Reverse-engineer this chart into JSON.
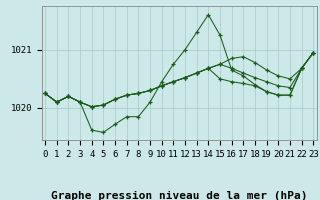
{
  "title": "Graphe pression niveau de la mer (hPa)",
  "x_labels": [
    "0",
    "1",
    "2",
    "3",
    "4",
    "5",
    "6",
    "7",
    "8",
    "9",
    "10",
    "11",
    "12",
    "13",
    "14",
    "15",
    "16",
    "17",
    "18",
    "19",
    "20",
    "21",
    "22",
    "23"
  ],
  "x_values": [
    0,
    1,
    2,
    3,
    4,
    5,
    6,
    7,
    8,
    9,
    10,
    11,
    12,
    13,
    14,
    15,
    16,
    17,
    18,
    19,
    20,
    21,
    22,
    23
  ],
  "series": [
    [
      1020.25,
      1020.1,
      1020.2,
      1020.1,
      1019.62,
      1019.58,
      1019.72,
      1019.85,
      1019.85,
      1020.1,
      1020.45,
      1020.75,
      1021.0,
      1021.3,
      1021.6,
      1021.25,
      1020.65,
      1020.55,
      1020.4,
      1020.28,
      1020.22,
      1020.22,
      1020.68,
      1020.95
    ],
    [
      1020.25,
      1020.1,
      1020.2,
      1020.1,
      1020.02,
      1020.05,
      1020.15,
      1020.22,
      1020.25,
      1020.3,
      1020.38,
      1020.45,
      1020.52,
      1020.6,
      1020.68,
      1020.5,
      1020.45,
      1020.42,
      1020.38,
      1020.28,
      1020.22,
      1020.22,
      1020.68,
      1020.95
    ],
    [
      1020.25,
      1020.1,
      1020.2,
      1020.1,
      1020.02,
      1020.05,
      1020.15,
      1020.22,
      1020.25,
      1020.3,
      1020.38,
      1020.45,
      1020.52,
      1020.6,
      1020.68,
      1020.75,
      1020.68,
      1020.6,
      1020.52,
      1020.45,
      1020.38,
      1020.35,
      1020.68,
      1020.95
    ],
    [
      1020.25,
      1020.1,
      1020.2,
      1020.1,
      1020.02,
      1020.05,
      1020.15,
      1020.22,
      1020.25,
      1020.3,
      1020.38,
      1020.45,
      1020.52,
      1020.6,
      1020.68,
      1020.75,
      1020.85,
      1020.88,
      1020.78,
      1020.65,
      1020.55,
      1020.5,
      1020.68,
      1020.95
    ]
  ],
  "line_color": "#1a5c1a",
  "marker": "+",
  "bg_color": "#cde8e8",
  "grid_color": "#a8c8c8",
  "ylim": [
    1019.45,
    1021.75
  ],
  "yticks": [
    1020,
    1021
  ],
  "title_fontsize": 8,
  "tick_fontsize": 6.5
}
